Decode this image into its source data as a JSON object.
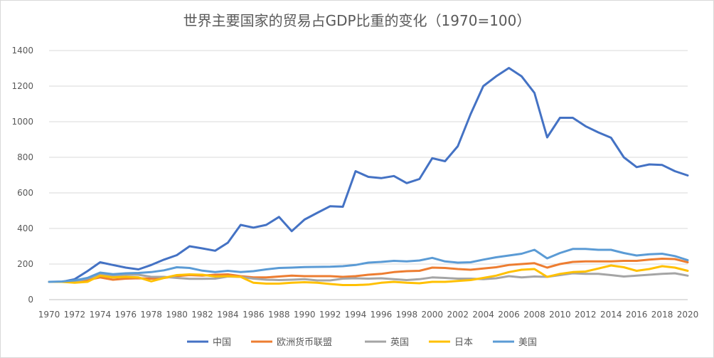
{
  "chart_data": {
    "type": "line",
    "title": "世界主要国家的贸易占GDP比重的变化（1970=100）",
    "xlabel": "",
    "ylabel": "",
    "ylim": [
      0,
      1400
    ],
    "yticks": [
      0,
      200,
      400,
      600,
      800,
      1000,
      1200,
      1400
    ],
    "grid": true,
    "legend_position": "bottom",
    "x": [
      1970,
      1971,
      1972,
      1973,
      1974,
      1975,
      1976,
      1977,
      1978,
      1979,
      1980,
      1981,
      1982,
      1983,
      1984,
      1985,
      1986,
      1987,
      1988,
      1989,
      1990,
      1991,
      1992,
      1993,
      1994,
      1995,
      1996,
      1997,
      1998,
      1999,
      2000,
      2001,
      2002,
      2003,
      2004,
      2005,
      2006,
      2007,
      2008,
      2009,
      2010,
      2011,
      2012,
      2013,
      2014,
      2015,
      2016,
      2017,
      2018,
      2019,
      2020
    ],
    "xtick_labels": [
      "1970",
      "1972",
      "1974",
      "1976",
      "1978",
      "1980",
      "1982",
      "1984",
      "1986",
      "1988",
      "1990",
      "1992",
      "1994",
      "1996",
      "1998",
      "2000",
      "2002",
      "2004",
      "2006",
      "2008",
      "2010",
      "2012",
      "2014",
      "2016",
      "2018",
      "2020"
    ],
    "series": [
      {
        "name": "中国",
        "color": "#4472c4",
        "values": [
          100,
          100,
          115,
          160,
          210,
          195,
          180,
          170,
          195,
          225,
          250,
          300,
          288,
          275,
          320,
          420,
          405,
          420,
          465,
          385,
          450,
          488,
          525,
          522,
          722,
          690,
          683,
          695,
          655,
          678,
          795,
          778,
          862,
          1042,
          1200,
          1255,
          1302,
          1255,
          1162,
          912,
          1022,
          1022,
          975,
          940,
          910,
          800,
          745,
          760,
          757,
          722,
          698
        ]
      },
      {
        "name": "欧洲货币联盟",
        "color": "#ed7d31",
        "values": [
          100,
          100,
          105,
          110,
          125,
          112,
          118,
          120,
          118,
          122,
          132,
          138,
          135,
          140,
          142,
          132,
          125,
          125,
          130,
          135,
          132,
          132,
          132,
          128,
          132,
          140,
          145,
          155,
          160,
          162,
          180,
          178,
          172,
          168,
          175,
          182,
          195,
          200,
          205,
          180,
          200,
          212,
          215,
          215,
          215,
          218,
          218,
          225,
          230,
          228,
          210
        ]
      },
      {
        "name": "英国",
        "color": "#a5a5a5",
        "values": [
          100,
          100,
          102,
          118,
          142,
          132,
          140,
          140,
          128,
          128,
          122,
          117,
          117,
          118,
          130,
          128,
          118,
          112,
          110,
          112,
          115,
          108,
          108,
          118,
          120,
          118,
          120,
          115,
          110,
          115,
          125,
          122,
          118,
          118,
          115,
          120,
          132,
          125,
          130,
          128,
          138,
          148,
          145,
          145,
          138,
          130,
          135,
          140,
          145,
          148,
          135
        ]
      },
      {
        "name": "日本",
        "color": "#ffc000",
        "values": [
          100,
          100,
          95,
          100,
          135,
          125,
          128,
          125,
          103,
          122,
          138,
          142,
          140,
          130,
          132,
          128,
          95,
          90,
          90,
          95,
          98,
          95,
          88,
          82,
          82,
          85,
          95,
          100,
          95,
          92,
          100,
          100,
          105,
          110,
          122,
          135,
          155,
          168,
          172,
          128,
          145,
          155,
          158,
          175,
          192,
          182,
          162,
          172,
          188,
          180,
          162
        ]
      },
      {
        "name": "美国",
        "color": "#5b9bd5",
        "values": [
          100,
          102,
          108,
          122,
          152,
          143,
          148,
          150,
          155,
          165,
          182,
          178,
          163,
          155,
          162,
          155,
          160,
          170,
          178,
          180,
          183,
          184,
          185,
          188,
          195,
          208,
          212,
          218,
          215,
          220,
          235,
          215,
          208,
          210,
          225,
          238,
          248,
          258,
          280,
          232,
          262,
          285,
          285,
          280,
          280,
          262,
          248,
          255,
          258,
          245,
          222
        ]
      }
    ]
  }
}
